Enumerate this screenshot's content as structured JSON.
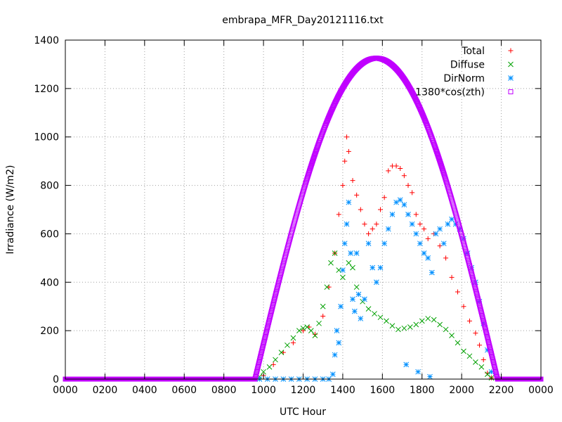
{
  "chart_data": {
    "type": "scatter",
    "title": "embrapa_MFR_Day20121116.txt",
    "xlabel": "UTC Hour",
    "ylabel": "Irradiance (W/m2)",
    "xlim": [
      0,
      24
    ],
    "ylim": [
      0,
      1400
    ],
    "x_tick_labels": [
      "0000",
      "0200",
      "0400",
      "0600",
      "0800",
      "1000",
      "1200",
      "1400",
      "1600",
      "1800",
      "2000",
      "2200",
      "0000"
    ],
    "y_ticks": [
      0,
      200,
      400,
      600,
      800,
      1000,
      1200,
      1400
    ],
    "grid": true,
    "legend_position": "top-right",
    "series": [
      {
        "name": "Total",
        "marker": "plus",
        "color": "#ff0000",
        "points": [
          [
            10.0,
            15
          ],
          [
            10.5,
            60
          ],
          [
            11.0,
            110
          ],
          [
            11.5,
            150
          ],
          [
            12.0,
            200
          ],
          [
            12.3,
            215
          ],
          [
            12.6,
            185
          ],
          [
            13.0,
            260
          ],
          [
            13.3,
            380
          ],
          [
            13.6,
            520
          ],
          [
            13.8,
            680
          ],
          [
            14.0,
            800
          ],
          [
            14.1,
            900
          ],
          [
            14.2,
            1000
          ],
          [
            14.3,
            940
          ],
          [
            14.5,
            820
          ],
          [
            14.7,
            760
          ],
          [
            14.9,
            700
          ],
          [
            15.1,
            640
          ],
          [
            15.3,
            600
          ],
          [
            15.5,
            620
          ],
          [
            15.7,
            640
          ],
          [
            15.9,
            700
          ],
          [
            16.1,
            750
          ],
          [
            16.3,
            860
          ],
          [
            16.5,
            880
          ],
          [
            16.7,
            880
          ],
          [
            16.9,
            870
          ],
          [
            17.1,
            840
          ],
          [
            17.3,
            800
          ],
          [
            17.5,
            770
          ],
          [
            17.7,
            680
          ],
          [
            17.9,
            640
          ],
          [
            18.1,
            620
          ],
          [
            18.3,
            580
          ],
          [
            18.6,
            600
          ],
          [
            18.9,
            550
          ],
          [
            19.2,
            500
          ],
          [
            19.5,
            420
          ],
          [
            19.8,
            360
          ],
          [
            20.1,
            300
          ],
          [
            20.4,
            240
          ],
          [
            20.7,
            190
          ],
          [
            20.9,
            140
          ],
          [
            21.1,
            80
          ],
          [
            21.3,
            25
          ],
          [
            21.5,
            5
          ]
        ]
      },
      {
        "name": "Diffuse",
        "marker": "cross",
        "color": "#00a000",
        "points": [
          [
            9.8,
            10
          ],
          [
            10.0,
            30
          ],
          [
            10.3,
            50
          ],
          [
            10.6,
            80
          ],
          [
            10.9,
            110
          ],
          [
            11.2,
            140
          ],
          [
            11.5,
            170
          ],
          [
            11.8,
            200
          ],
          [
            12.0,
            210
          ],
          [
            12.2,
            215
          ],
          [
            12.4,
            200
          ],
          [
            12.6,
            180
          ],
          [
            12.8,
            230
          ],
          [
            13.0,
            300
          ],
          [
            13.2,
            380
          ],
          [
            13.4,
            480
          ],
          [
            13.6,
            520
          ],
          [
            13.8,
            450
          ],
          [
            14.0,
            420
          ],
          [
            14.3,
            480
          ],
          [
            14.5,
            460
          ],
          [
            14.7,
            380
          ],
          [
            15.0,
            320
          ],
          [
            15.3,
            290
          ],
          [
            15.6,
            270
          ],
          [
            15.9,
            255
          ],
          [
            16.2,
            240
          ],
          [
            16.5,
            220
          ],
          [
            16.8,
            205
          ],
          [
            17.1,
            210
          ],
          [
            17.4,
            215
          ],
          [
            17.7,
            225
          ],
          [
            18.0,
            240
          ],
          [
            18.3,
            250
          ],
          [
            18.6,
            245
          ],
          [
            18.9,
            225
          ],
          [
            19.2,
            205
          ],
          [
            19.5,
            180
          ],
          [
            19.8,
            150
          ],
          [
            20.1,
            115
          ],
          [
            20.4,
            95
          ],
          [
            20.7,
            70
          ],
          [
            21.0,
            50
          ],
          [
            21.3,
            20
          ],
          [
            21.5,
            5
          ]
        ]
      },
      {
        "name": "DirNorm",
        "marker": "star",
        "color": "#0090ff",
        "points": [
          [
            9.8,
            0
          ],
          [
            10.2,
            0
          ],
          [
            10.6,
            0
          ],
          [
            11.0,
            0
          ],
          [
            11.4,
            0
          ],
          [
            11.8,
            0
          ],
          [
            12.2,
            0
          ],
          [
            12.6,
            0
          ],
          [
            13.0,
            0
          ],
          [
            13.3,
            0
          ],
          [
            13.5,
            20
          ],
          [
            13.6,
            100
          ],
          [
            13.7,
            200
          ],
          [
            13.8,
            150
          ],
          [
            13.9,
            300
          ],
          [
            14.0,
            450
          ],
          [
            14.1,
            560
          ],
          [
            14.2,
            640
          ],
          [
            14.3,
            730
          ],
          [
            14.4,
            520
          ],
          [
            14.5,
            330
          ],
          [
            14.6,
            280
          ],
          [
            14.7,
            520
          ],
          [
            14.8,
            350
          ],
          [
            14.9,
            250
          ],
          [
            15.1,
            330
          ],
          [
            15.3,
            560
          ],
          [
            15.5,
            460
          ],
          [
            15.7,
            400
          ],
          [
            15.9,
            460
          ],
          [
            16.1,
            560
          ],
          [
            16.3,
            620
          ],
          [
            16.5,
            680
          ],
          [
            16.7,
            730
          ],
          [
            16.9,
            740
          ],
          [
            17.1,
            720
          ],
          [
            17.3,
            680
          ],
          [
            17.5,
            640
          ],
          [
            17.7,
            600
          ],
          [
            17.9,
            560
          ],
          [
            18.1,
            520
          ],
          [
            18.3,
            500
          ],
          [
            18.5,
            440
          ],
          [
            18.7,
            600
          ],
          [
            18.9,
            620
          ],
          [
            19.1,
            560
          ],
          [
            19.3,
            640
          ],
          [
            19.5,
            660
          ],
          [
            19.7,
            640
          ],
          [
            19.9,
            620
          ],
          [
            20.1,
            580
          ],
          [
            20.3,
            520
          ],
          [
            20.5,
            460
          ],
          [
            20.7,
            400
          ],
          [
            20.9,
            320
          ],
          [
            21.1,
            230
          ],
          [
            21.3,
            120
          ],
          [
            21.5,
            30
          ],
          [
            17.2,
            60
          ],
          [
            17.8,
            30
          ],
          [
            18.4,
            10
          ]
        ]
      },
      {
        "name": "1380*cos(zth)",
        "marker": "square",
        "color": "#c000ff",
        "curve": {
          "type": "sine_arc",
          "rise": 9.57,
          "set": 21.81,
          "peak": 1325,
          "baseline": 0
        }
      }
    ]
  }
}
